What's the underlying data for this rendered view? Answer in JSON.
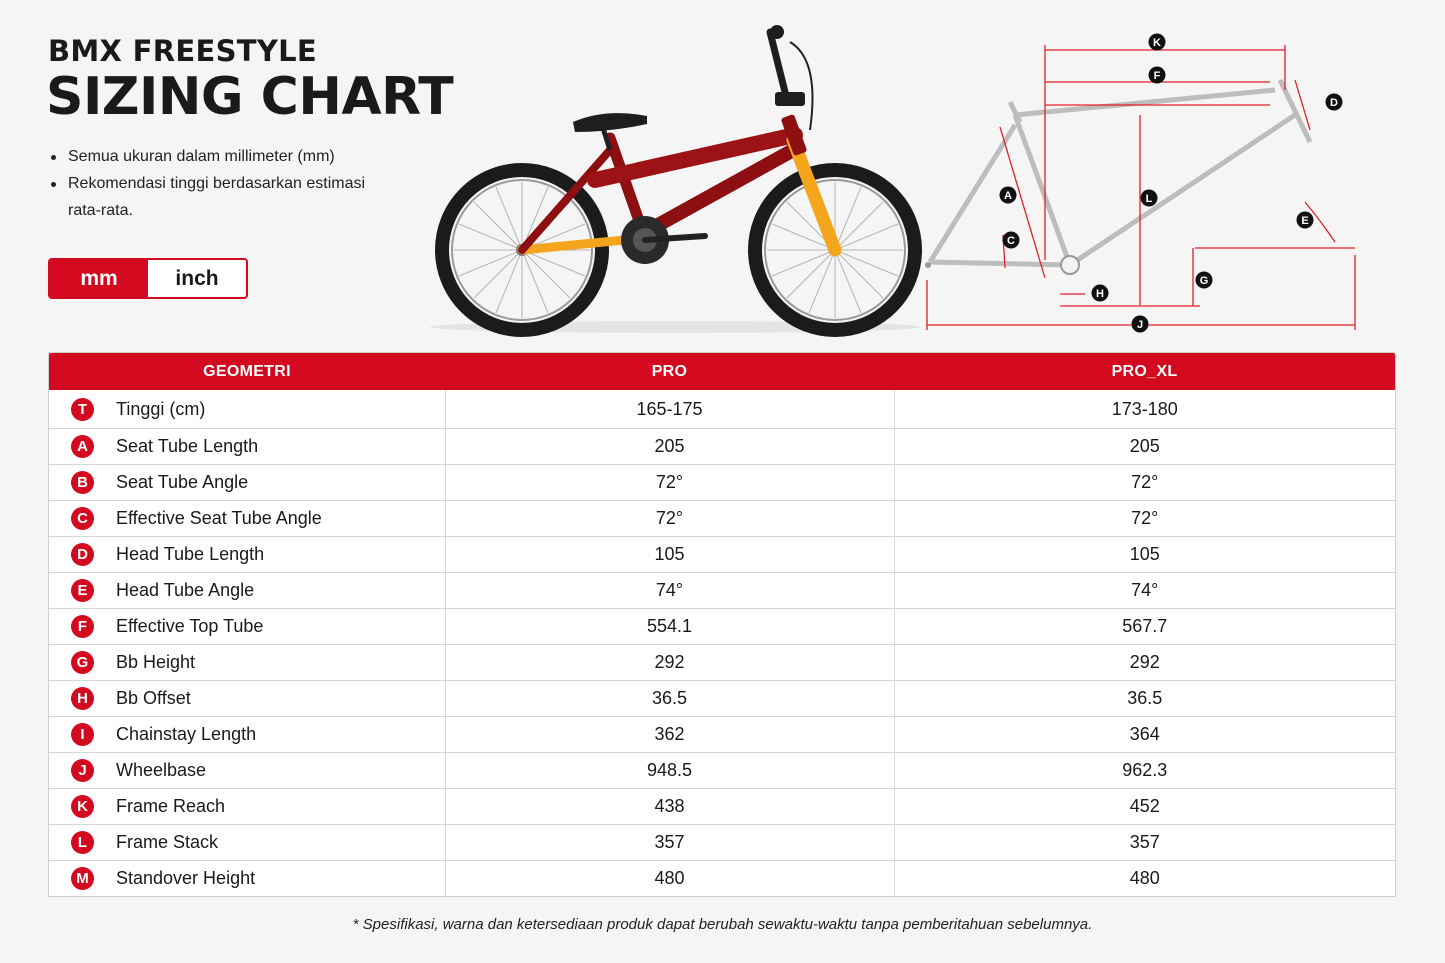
{
  "header": {
    "title_line1": "BMX FREESTYLE",
    "title_line2": "SIZING CHART"
  },
  "notes": [
    "Semua ukuran dalam millimeter (mm)",
    "Rekomendasi tinggi berdasarkan estimasi rata-rata."
  ],
  "unit_toggle": {
    "mm_label": "mm",
    "inch_label": "inch",
    "selected": "mm"
  },
  "diagram": {
    "labels": [
      "K",
      "F",
      "D",
      "A",
      "L",
      "E",
      "C",
      "G",
      "H",
      "J"
    ]
  },
  "colors": {
    "accent": "#d3091f",
    "frame_dark_red": "#8e0f12",
    "fork_orange": "#f3a51c"
  },
  "table": {
    "headers": {
      "geometry": "GEOMETRI",
      "pro": "PRO",
      "pro_xl": "PRO_XL"
    },
    "rows": [
      {
        "letter": "T",
        "name": "Tinggi (cm)",
        "pro": "165-175",
        "pro_xl": "173-180"
      },
      {
        "letter": "A",
        "name": "Seat Tube Length",
        "pro": "205",
        "pro_xl": "205"
      },
      {
        "letter": "B",
        "name": "Seat Tube Angle",
        "pro": "72°",
        "pro_xl": "72°"
      },
      {
        "letter": "C",
        "name": "Effective Seat Tube Angle",
        "pro": "72°",
        "pro_xl": "72°"
      },
      {
        "letter": "D",
        "name": "Head Tube Length",
        "pro": "105",
        "pro_xl": "105"
      },
      {
        "letter": "E",
        "name": "Head Tube Angle",
        "pro": "74°",
        "pro_xl": "74°"
      },
      {
        "letter": "F",
        "name": "Effective Top Tube",
        "pro": "554.1",
        "pro_xl": "567.7"
      },
      {
        "letter": "G",
        "name": "Bb Height",
        "pro": "292",
        "pro_xl": "292"
      },
      {
        "letter": "H",
        "name": "Bb Offset",
        "pro": "36.5",
        "pro_xl": "36.5"
      },
      {
        "letter": "I",
        "name": "Chainstay Length",
        "pro": "362",
        "pro_xl": "364"
      },
      {
        "letter": "J",
        "name": "Wheelbase",
        "pro": "948.5",
        "pro_xl": "962.3"
      },
      {
        "letter": "K",
        "name": "Frame Reach",
        "pro": "438",
        "pro_xl": "452"
      },
      {
        "letter": "L",
        "name": "Frame Stack",
        "pro": "357",
        "pro_xl": "357"
      },
      {
        "letter": "M",
        "name": "Standover Height",
        "pro": "480",
        "pro_xl": "480"
      }
    ]
  },
  "footnote": "* Spesifikasi, warna dan ketersediaan produk dapat berubah sewaktu-waktu tanpa pemberitahuan sebelumnya."
}
